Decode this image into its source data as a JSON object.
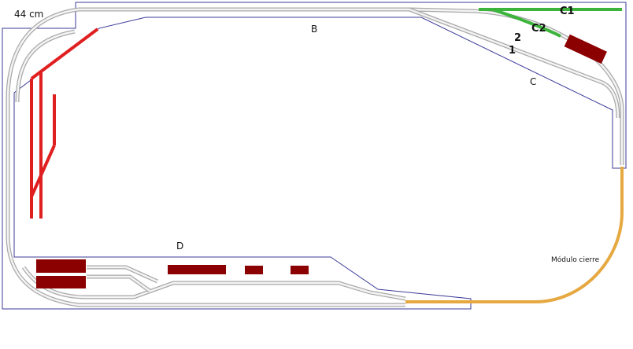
{
  "labels": {
    "size": "44 cm",
    "b": "B",
    "c1": "C1",
    "c2": "C2",
    "two": "2",
    "one": "1",
    "c": "C",
    "d": "D",
    "module": "Módulo cierre"
  }
}
